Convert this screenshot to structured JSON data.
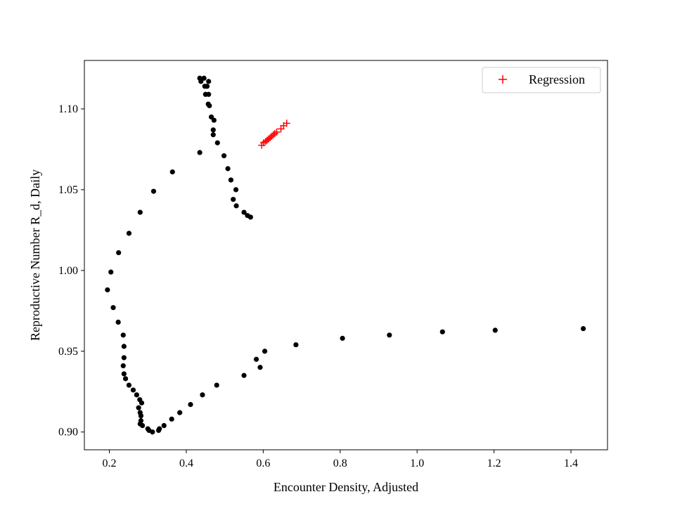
{
  "chart_data": {
    "type": "scatter",
    "title": "",
    "xlabel": "Encounter Density, Adjusted",
    "ylabel": "Reproductive Number R_d, Daily",
    "xlim": [
      0.135,
      1.495
    ],
    "ylim": [
      0.889,
      1.13
    ],
    "grid": false,
    "legend_position": "top-right",
    "x_ticks": [
      {
        "value": 0.2,
        "label": "0.2"
      },
      {
        "value": 0.4,
        "label": "0.4"
      },
      {
        "value": 0.6,
        "label": "0.6"
      },
      {
        "value": 0.8,
        "label": "0.8"
      },
      {
        "value": 1.0,
        "label": "1.0"
      },
      {
        "value": 1.2,
        "label": "1.2"
      },
      {
        "value": 1.4,
        "label": "1.4"
      }
    ],
    "y_ticks": [
      {
        "value": 0.9,
        "label": "0.90"
      },
      {
        "value": 0.95,
        "label": "0.95"
      },
      {
        "value": 1.0,
        "label": "1.00"
      },
      {
        "value": 1.05,
        "label": "1.05"
      },
      {
        "value": 1.1,
        "label": "1.10"
      }
    ],
    "series": [
      {
        "marker": "dot",
        "color": "#000000",
        "legend": false,
        "points": [
          [
            0.435,
            1.119
          ],
          [
            0.438,
            1.117
          ],
          [
            0.446,
            1.119
          ],
          [
            0.458,
            1.117
          ],
          [
            0.448,
            1.114
          ],
          [
            0.454,
            1.114
          ],
          [
            0.45,
            1.109
          ],
          [
            0.458,
            1.109
          ],
          [
            0.457,
            1.103
          ],
          [
            0.46,
            1.102
          ],
          [
            0.465,
            1.095
          ],
          [
            0.472,
            1.093
          ],
          [
            0.47,
            1.087
          ],
          [
            0.47,
            1.084
          ],
          [
            0.481,
            1.079
          ],
          [
            0.498,
            1.071
          ],
          [
            0.508,
            1.063
          ],
          [
            0.516,
            1.056
          ],
          [
            0.529,
            1.05
          ],
          [
            0.522,
            1.044
          ],
          [
            0.53,
            1.04
          ],
          [
            0.55,
            1.036
          ],
          [
            0.559,
            1.034
          ],
          [
            0.567,
            1.033
          ],
          [
            0.435,
            1.073
          ],
          [
            0.364,
            1.061
          ],
          [
            0.315,
            1.049
          ],
          [
            0.28,
            1.036
          ],
          [
            0.251,
            1.023
          ],
          [
            0.224,
            1.011
          ],
          [
            0.204,
            0.999
          ],
          [
            0.195,
            0.988
          ],
          [
            0.21,
            0.977
          ],
          [
            0.223,
            0.968
          ],
          [
            0.236,
            0.96
          ],
          [
            0.238,
            0.953
          ],
          [
            0.238,
            0.946
          ],
          [
            0.236,
            0.941
          ],
          [
            0.238,
            0.936
          ],
          [
            0.242,
            0.933
          ],
          [
            0.251,
            0.929
          ],
          [
            0.262,
            0.926
          ],
          [
            0.271,
            0.923
          ],
          [
            0.279,
            0.92
          ],
          [
            0.284,
            0.918
          ],
          [
            0.276,
            0.915
          ],
          [
            0.28,
            0.912
          ],
          [
            0.282,
            0.91
          ],
          [
            0.282,
            0.907
          ],
          [
            0.28,
            0.905
          ],
          [
            0.286,
            0.904
          ],
          [
            0.3,
            0.902
          ],
          [
            0.303,
            0.901
          ],
          [
            0.312,
            0.9
          ],
          [
            0.328,
            0.901
          ],
          [
            0.33,
            0.902
          ],
          [
            0.342,
            0.904
          ],
          [
            0.362,
            0.908
          ],
          [
            0.383,
            0.912
          ],
          [
            0.411,
            0.917
          ],
          [
            0.442,
            0.923
          ],
          [
            0.479,
            0.929
          ],
          [
            0.55,
            0.935
          ],
          [
            0.592,
            0.94
          ],
          [
            0.582,
            0.945
          ],
          [
            0.604,
            0.95
          ],
          [
            0.685,
            0.954
          ],
          [
            0.806,
            0.958
          ],
          [
            0.928,
            0.96
          ],
          [
            1.066,
            0.962
          ],
          [
            1.203,
            0.963
          ],
          [
            1.432,
            0.964
          ]
        ]
      },
      {
        "name": "Regression",
        "marker": "plus",
        "color": "#ff0000",
        "legend": true,
        "points": [
          [
            0.596,
            1.0775
          ],
          [
            0.601,
            1.079
          ],
          [
            0.606,
            1.0798
          ],
          [
            0.61,
            1.0806
          ],
          [
            0.614,
            1.0814
          ],
          [
            0.618,
            1.0822
          ],
          [
            0.622,
            1.0831
          ],
          [
            0.626,
            1.0839
          ],
          [
            0.63,
            1.0848
          ],
          [
            0.635,
            1.0857
          ],
          [
            0.646,
            1.0876
          ],
          [
            0.653,
            1.0896
          ],
          [
            0.661,
            1.0911
          ]
        ]
      }
    ]
  }
}
